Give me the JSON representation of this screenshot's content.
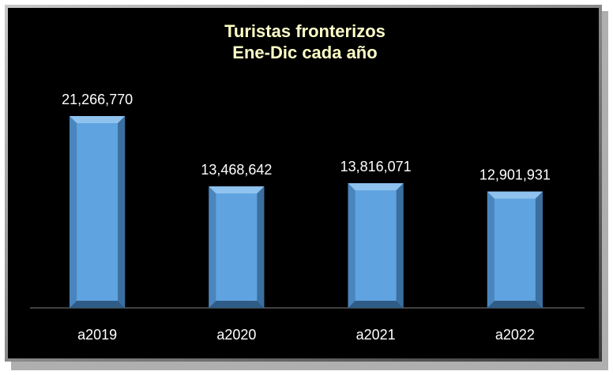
{
  "chart_data": {
    "type": "bar",
    "title": "Turistas fronterizos",
    "subtitle": "Ene-Dic cada año",
    "categories": [
      "a2019",
      "a2020",
      "a2021",
      "a2022"
    ],
    "values": [
      21266770,
      13468642,
      13816071,
      12901931
    ],
    "value_labels": [
      "21,266,770",
      "13,468,642",
      "13,816,071",
      "12,901,931"
    ],
    "color": "#5fa3e0"
  }
}
